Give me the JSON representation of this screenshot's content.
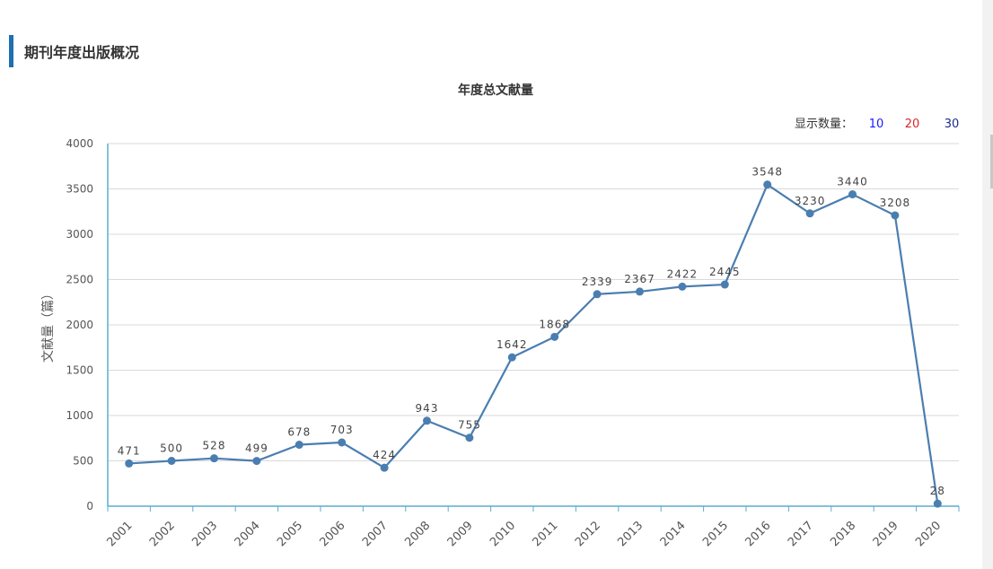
{
  "section": {
    "title": "期刊年度出版概况"
  },
  "display_count": {
    "label": "显示数量：",
    "options": [
      {
        "label": "10",
        "color": "#1a1aff"
      },
      {
        "label": "20",
        "color": "#d62728"
      },
      {
        "label": "30",
        "color": "#1f2a8c"
      }
    ]
  },
  "chart_data": {
    "type": "line",
    "title": "年度总文献量",
    "ylabel": "文献量（篇）",
    "xlabel": "",
    "categories": [
      "2001",
      "2002",
      "2003",
      "2004",
      "2005",
      "2006",
      "2007",
      "2008",
      "2009",
      "2010",
      "2011",
      "2012",
      "2013",
      "2014",
      "2015",
      "2016",
      "2017",
      "2018",
      "2019",
      "2020"
    ],
    "values": [
      471,
      500,
      528,
      499,
      678,
      703,
      424,
      943,
      755,
      1642,
      1868,
      2339,
      2367,
      2422,
      2445,
      3548,
      3230,
      3440,
      3208,
      28
    ],
    "ylim": [
      0,
      4000
    ],
    "yticks": [
      0,
      500,
      1000,
      1500,
      2000,
      2500,
      3000,
      3500,
      4000
    ],
    "grid": true,
    "legend": "none",
    "line_color": "#4a7eb0",
    "axis_color": "#5aaed0"
  }
}
